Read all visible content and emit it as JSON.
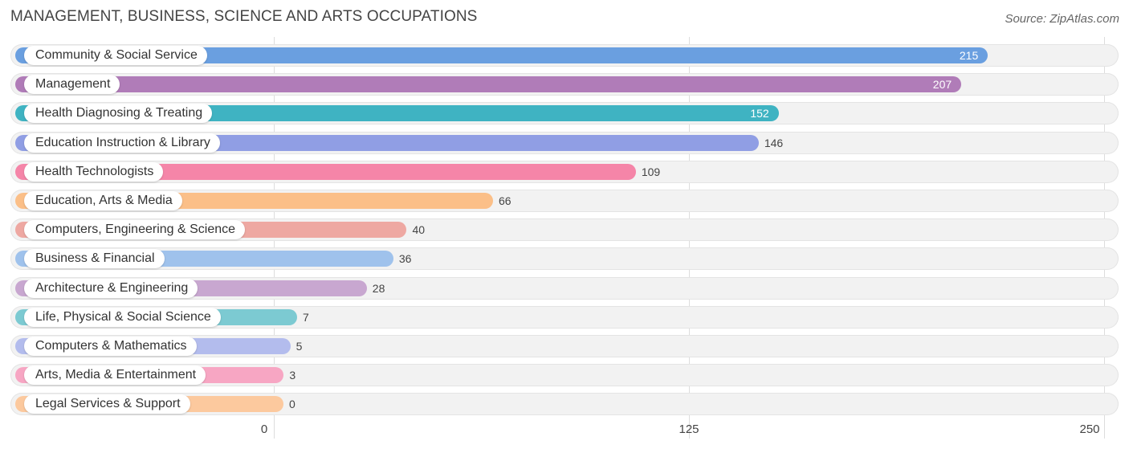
{
  "title": "MANAGEMENT, BUSINESS, SCIENCE AND ARTS OCCUPATIONS",
  "source": "Source: ZipAtlas.com",
  "chart_data": {
    "type": "bar",
    "orientation": "horizontal",
    "title": "MANAGEMENT, BUSINESS, SCIENCE AND ARTS OCCUPATIONS",
    "xlim": [
      0,
      250
    ],
    "xticks": [
      0,
      125,
      250
    ],
    "grid": true,
    "categories": [
      "Community & Social Service",
      "Management",
      "Health Diagnosing & Treating",
      "Education Instruction & Library",
      "Health Technologists",
      "Education, Arts & Media",
      "Computers, Engineering & Science",
      "Business & Financial",
      "Architecture & Engineering",
      "Life, Physical & Social Science",
      "Computers & Mathematics",
      "Arts, Media & Entertainment",
      "Legal Services & Support"
    ],
    "values": [
      215,
      207,
      152,
      146,
      109,
      66,
      40,
      36,
      28,
      7,
      5,
      3,
      0
    ],
    "colors": [
      "#6a9fe0",
      "#b07cb8",
      "#3fb3c2",
      "#909ee4",
      "#f585a8",
      "#fbbf88",
      "#eea8a2",
      "#9fc2ec",
      "#c8a7d0",
      "#7ccad2",
      "#b3bced",
      "#f7a6c3",
      "#fcc99e"
    ]
  }
}
